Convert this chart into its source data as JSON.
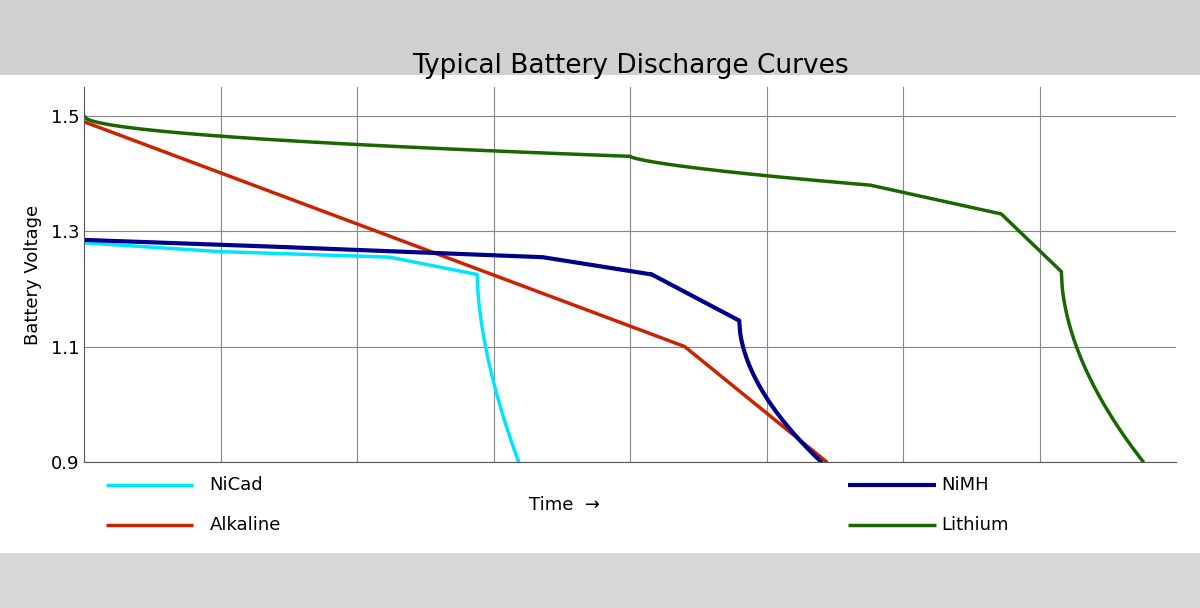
{
  "title": "Typical Battery Discharge Curves",
  "ylabel": "Battery Voltage",
  "ylim": [
    0.9,
    1.55
  ],
  "yticks": [
    0.9,
    1.1,
    1.3,
    1.5
  ],
  "background_color": "#ffffff",
  "plot_bg_color": "#f0f0f0",
  "grid_color": "#888888",
  "title_fontsize": 19,
  "label_fontsize": 13,
  "tick_fontsize": 13,
  "legend_fontsize": 13,
  "curves": {
    "nicad": {
      "color": "#00e5ff",
      "linewidth": 2.5,
      "label": "NiCad"
    },
    "alkaline": {
      "color": "#cc2200",
      "linewidth": 2.5,
      "label": "Alkaline"
    },
    "nimh": {
      "color": "#00008b",
      "linewidth": 3,
      "label": "NiMH"
    },
    "lithium": {
      "color": "#1a6600",
      "linewidth": 2.5,
      "label": "Lithium"
    }
  },
  "vgrid_positions": [
    0.125,
    0.25,
    0.375,
    0.5,
    0.625,
    0.75,
    0.875
  ],
  "top_bar_color": "#d0d0d0",
  "bottom_bar_color": "#d8d8d8"
}
